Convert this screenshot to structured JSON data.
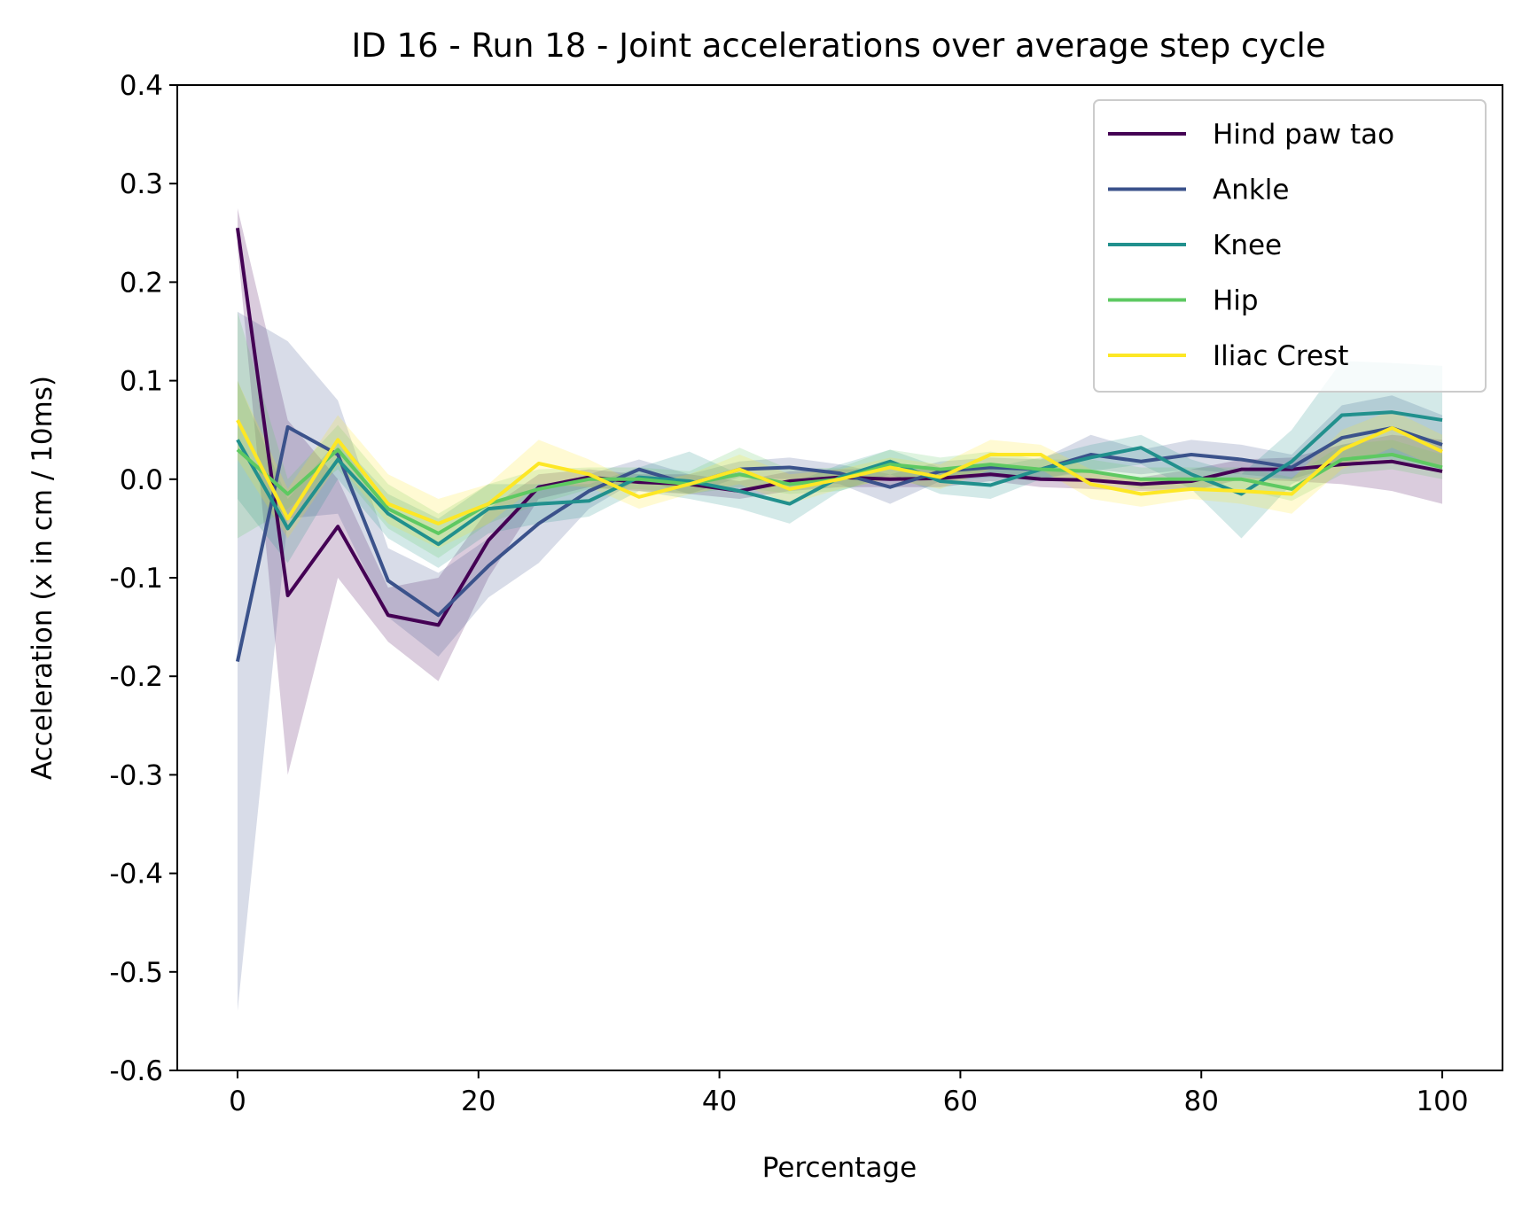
{
  "chart_data": {
    "type": "line",
    "title": "ID 16 - Run 18 - Joint accelerations over average step cycle",
    "xlabel": "Percentage",
    "ylabel": "Acceleration (x in cm / 10ms)",
    "xlim": [
      -5,
      105
    ],
    "ylim": [
      -0.6,
      0.4
    ],
    "xticks": [
      0,
      20,
      40,
      60,
      80,
      100
    ],
    "xtick_labels": [
      "0",
      "20",
      "40",
      "60",
      "80",
      "100"
    ],
    "yticks": [
      0.4,
      0.3,
      0.2,
      0.1,
      0.0,
      -0.1,
      -0.2,
      -0.3,
      -0.4,
      -0.5,
      -0.6
    ],
    "ytick_labels": [
      "0.4",
      "0.3",
      "0.2",
      "0.1",
      "0.0",
      "-0.1",
      "-0.2",
      "-0.3",
      "-0.4",
      "-0.5",
      "-0.6"
    ],
    "grid": false,
    "legend_position": "top-right",
    "x": [
      0,
      4.17,
      8.33,
      12.5,
      16.67,
      20.83,
      25,
      29.17,
      33.33,
      37.5,
      41.67,
      45.83,
      50,
      54.17,
      58.33,
      62.5,
      66.67,
      70.83,
      75,
      79.17,
      83.33,
      87.5,
      91.67,
      95.83,
      100
    ],
    "series": [
      {
        "name": "Hind paw tao",
        "color": "#440154",
        "values": [
          0.255,
          -0.118,
          -0.048,
          -0.138,
          -0.148,
          -0.062,
          -0.008,
          0.002,
          -0.003,
          -0.005,
          -0.012,
          -0.002,
          0.002,
          0.0,
          0.001,
          0.005,
          0.0,
          -0.001,
          -0.005,
          -0.002,
          0.01,
          0.01,
          0.015,
          0.018,
          0.008
        ],
        "band": [
          [
            0.275,
            0.235
          ],
          [
            0.06,
            -0.3
          ],
          [
            0.0,
            -0.1
          ],
          [
            -0.11,
            -0.165
          ],
          [
            -0.1,
            -0.205
          ],
          [
            -0.03,
            -0.1
          ],
          [
            0.005,
            -0.02
          ],
          [
            0.01,
            -0.008
          ],
          [
            0.005,
            -0.012
          ],
          [
            0.005,
            -0.015
          ],
          [
            -0.002,
            -0.02
          ],
          [
            0.008,
            -0.012
          ],
          [
            0.01,
            -0.008
          ],
          [
            0.01,
            -0.008
          ],
          [
            0.01,
            -0.008
          ],
          [
            0.012,
            -0.002
          ],
          [
            0.01,
            -0.008
          ],
          [
            0.008,
            -0.01
          ],
          [
            0.002,
            -0.012
          ],
          [
            0.01,
            -0.012
          ],
          [
            0.02,
            0.0
          ],
          [
            0.022,
            -0.002
          ],
          [
            0.035,
            -0.005
          ],
          [
            0.045,
            -0.012
          ],
          [
            0.04,
            -0.025
          ]
        ]
      },
      {
        "name": "Ankle",
        "color": "#3b528b",
        "values": [
          -0.185,
          0.053,
          0.025,
          -0.103,
          -0.138,
          -0.088,
          -0.045,
          -0.012,
          0.01,
          -0.005,
          0.01,
          0.012,
          0.006,
          -0.008,
          0.008,
          0.012,
          0.01,
          0.025,
          0.018,
          0.025,
          0.02,
          0.012,
          0.042,
          0.052,
          0.035
        ],
        "band": [
          [
            0.17,
            -0.54
          ],
          [
            0.14,
            -0.04
          ],
          [
            0.08,
            -0.035
          ],
          [
            -0.07,
            -0.14
          ],
          [
            -0.095,
            -0.18
          ],
          [
            -0.06,
            -0.12
          ],
          [
            -0.01,
            -0.085
          ],
          [
            0.005,
            -0.03
          ],
          [
            0.02,
            0.0
          ],
          [
            0.005,
            -0.015
          ],
          [
            0.018,
            0.002
          ],
          [
            0.022,
            0.0
          ],
          [
            0.015,
            -0.005
          ],
          [
            0.005,
            -0.025
          ],
          [
            0.018,
            -0.002
          ],
          [
            0.022,
            0.002
          ],
          [
            0.02,
            0.0
          ],
          [
            0.045,
            0.01
          ],
          [
            0.03,
            0.005
          ],
          [
            0.04,
            0.01
          ],
          [
            0.035,
            0.005
          ],
          [
            0.025,
            0.0
          ],
          [
            0.075,
            0.015
          ],
          [
            0.085,
            0.025
          ],
          [
            0.065,
            0.01
          ]
        ]
      },
      {
        "name": "Knee",
        "color": "#21908d",
        "values": [
          0.04,
          -0.05,
          0.02,
          -0.035,
          -0.066,
          -0.03,
          -0.025,
          -0.022,
          0.002,
          -0.002,
          -0.012,
          -0.025,
          0.002,
          0.018,
          -0.002,
          -0.006,
          0.01,
          0.022,
          0.032,
          0.005,
          -0.015,
          0.018,
          0.065,
          0.068,
          0.06
        ],
        "band": [
          [
            0.1,
            -0.02
          ],
          [
            -0.02,
            -0.085
          ],
          [
            0.04,
            0.0
          ],
          [
            -0.015,
            -0.06
          ],
          [
            -0.04,
            -0.09
          ],
          [
            -0.005,
            -0.055
          ],
          [
            -0.005,
            -0.045
          ],
          [
            -0.005,
            -0.038
          ],
          [
            0.012,
            -0.012
          ],
          [
            0.028,
            -0.02
          ],
          [
            0.005,
            -0.03
          ],
          [
            -0.005,
            -0.045
          ],
          [
            0.015,
            -0.012
          ],
          [
            0.03,
            0.005
          ],
          [
            0.012,
            -0.015
          ],
          [
            0.012,
            -0.02
          ],
          [
            0.022,
            0.0
          ],
          [
            0.035,
            0.008
          ],
          [
            0.045,
            0.015
          ],
          [
            0.02,
            -0.01
          ],
          [
            0.005,
            -0.06
          ],
          [
            0.05,
            -0.005
          ],
          [
            0.12,
            0.02
          ],
          [
            0.118,
            0.02
          ],
          [
            0.115,
            0.01
          ]
        ]
      },
      {
        "name": "Hip",
        "color": "#5ec962",
        "values": [
          0.03,
          -0.015,
          0.03,
          -0.03,
          -0.055,
          -0.025,
          -0.01,
          0.0,
          0.0,
          -0.005,
          0.005,
          -0.005,
          0.0,
          0.015,
          0.01,
          0.015,
          0.01,
          0.008,
          0.0,
          0.0,
          0.0,
          -0.01,
          0.02,
          0.025,
          0.012
        ],
        "band": [
          [
            0.17,
            -0.06
          ],
          [
            0.0,
            -0.03
          ],
          [
            0.055,
            0.01
          ],
          [
            -0.005,
            -0.05
          ],
          [
            -0.035,
            -0.08
          ],
          [
            -0.005,
            -0.045
          ],
          [
            0.01,
            -0.025
          ],
          [
            0.012,
            -0.01
          ],
          [
            0.012,
            -0.01
          ],
          [
            0.008,
            -0.015
          ],
          [
            0.032,
            -0.008
          ],
          [
            0.01,
            -0.015
          ],
          [
            0.012,
            -0.012
          ],
          [
            0.03,
            0.002
          ],
          [
            0.022,
            0.0
          ],
          [
            0.028,
            0.005
          ],
          [
            0.02,
            0.0
          ],
          [
            0.02,
            0.0
          ],
          [
            0.012,
            -0.01
          ],
          [
            0.012,
            -0.01
          ],
          [
            0.012,
            -0.01
          ],
          [
            0.002,
            -0.022
          ],
          [
            0.035,
            0.005
          ],
          [
            0.04,
            0.01
          ],
          [
            0.025,
            0.0
          ]
        ]
      },
      {
        "name": "Iliac Crest",
        "color": "#fde725",
        "values": [
          0.06,
          -0.04,
          0.04,
          -0.025,
          -0.045,
          -0.025,
          0.016,
          0.005,
          -0.018,
          -0.005,
          0.01,
          -0.01,
          0.0,
          0.012,
          0.002,
          0.025,
          0.025,
          -0.005,
          -0.015,
          -0.01,
          -0.012,
          -0.015,
          0.03,
          0.052,
          0.028
        ],
        "band": [
          [
            0.1,
            0.02
          ],
          [
            -0.01,
            -0.06
          ],
          [
            0.065,
            0.015
          ],
          [
            0.005,
            -0.045
          ],
          [
            -0.02,
            -0.07
          ],
          [
            -0.005,
            -0.045
          ],
          [
            0.04,
            -0.005
          ],
          [
            0.02,
            -0.008
          ],
          [
            -0.005,
            -0.03
          ],
          [
            0.005,
            -0.015
          ],
          [
            0.025,
            -0.005
          ],
          [
            0.005,
            -0.025
          ],
          [
            0.01,
            -0.01
          ],
          [
            0.022,
            0.0
          ],
          [
            0.015,
            -0.01
          ],
          [
            0.04,
            0.01
          ],
          [
            0.035,
            0.01
          ],
          [
            0.01,
            -0.02
          ],
          [
            0.0,
            -0.028
          ],
          [
            0.0,
            -0.02
          ],
          [
            0.002,
            -0.025
          ],
          [
            0.0,
            -0.035
          ],
          [
            0.05,
            0.01
          ],
          [
            0.07,
            0.032
          ],
          [
            0.045,
            0.01
          ]
        ]
      }
    ]
  }
}
